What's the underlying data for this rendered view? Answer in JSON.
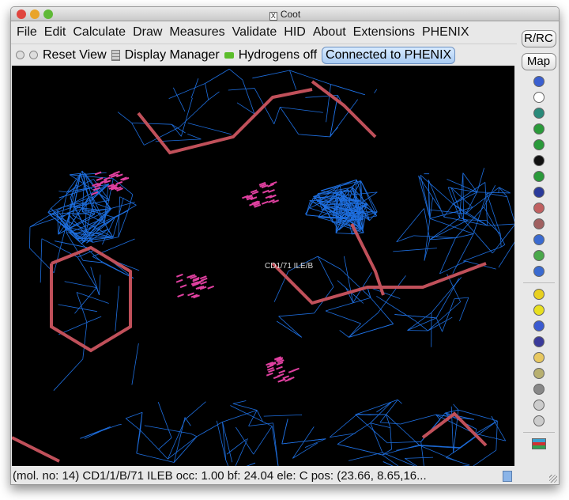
{
  "window": {
    "title": "Coot"
  },
  "menu": [
    "File",
    "Edit",
    "Calculate",
    "Draw",
    "Measures",
    "Validate",
    "HID",
    "About",
    "Extensions",
    "PHENIX"
  ],
  "toolbar": {
    "reset_view": "Reset View",
    "display_manager": "Display Manager",
    "hydrogens": "Hydrogens off",
    "connected": "Connected to PHENIX"
  },
  "side": {
    "rrc": "R/RC",
    "map": "Map",
    "icons": [
      "rotate-view-icon",
      "clock-icon",
      "anchor-icon",
      "refine-zone-icon",
      "regularize-icon",
      "play-icon",
      "rigid-body-icon",
      "rotamer-icon",
      "torsion-icon",
      "flip-icon",
      "pep-flip-icon",
      "side-chain-icon",
      "backrub-icon",
      "delete-hydrogens-icon",
      "radiation-icon",
      "add-atom-icon",
      "add-terminal-icon",
      "add-box-icon",
      "stamp-icon",
      "trash-icon",
      "undo-icon",
      "redo-icon",
      "flag-icon"
    ]
  },
  "viewport": {
    "atom_label": "CD1/71 ILE/B",
    "mesh_color": "#1e6fe0",
    "bond_color": "#c0505a"
  },
  "status": "(mol. no: 14)  CD1/1/B/71 ILEB occ:  1.00 bf: 24.04 ele:  C pos: (23.66, 8.65,16..."
}
